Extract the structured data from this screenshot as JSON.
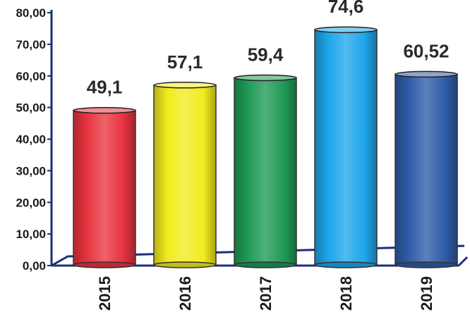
{
  "chart_data": {
    "type": "bar",
    "title": "",
    "xlabel": "",
    "ylabel": "",
    "categories": [
      "2015",
      "2016",
      "2017",
      "2018",
      "2019"
    ],
    "values": [
      49.1,
      57.1,
      59.4,
      74.6,
      60.52
    ],
    "value_labels": [
      "49,1",
      "57,1",
      "59,4",
      "74,6",
      "60,52"
    ],
    "colors": [
      "#e8343f",
      "#f2ec1e",
      "#1f9a55",
      "#1ea6ea",
      "#2f5ca8"
    ],
    "ylim": [
      0,
      80
    ],
    "yticks": [
      0,
      10,
      20,
      30,
      40,
      50,
      60,
      70,
      80
    ],
    "ytick_labels": [
      "0,00",
      "10,00",
      "20,00",
      "30,00",
      "40,00",
      "50,00",
      "60,00",
      "70,00",
      "80,00"
    ],
    "grid": false,
    "legend": "none",
    "bar_style": "3d-cylinder"
  }
}
